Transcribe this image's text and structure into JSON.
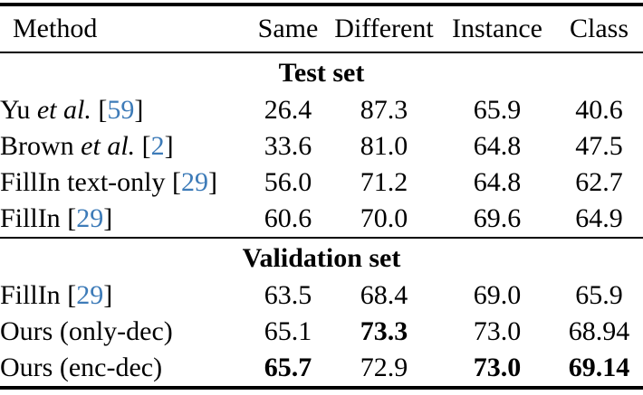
{
  "colors": {
    "citation_blue": "#3d7bb8",
    "rule_black": "#000000",
    "background": "#ffffff"
  },
  "table": {
    "headers": [
      "Method",
      "Same",
      "Different",
      "Instance",
      "Class"
    ],
    "sections": [
      {
        "title": "Test set",
        "rows": [
          {
            "method": {
              "pre": "Yu ",
              "it": "et al.",
              "post": " [",
              "cite": "59",
              "end": "]"
            },
            "values": [
              {
                "v": "26.4",
                "b": "false"
              },
              {
                "v": "87.3",
                "b": "false"
              },
              {
                "v": "65.9",
                "b": "false"
              },
              {
                "v": "40.6",
                "b": "false"
              }
            ]
          },
          {
            "method": {
              "pre": "Brown ",
              "it": "et al.",
              "post": " [",
              "cite": "2",
              "end": "]"
            },
            "values": [
              {
                "v": "33.6",
                "b": "false"
              },
              {
                "v": "81.0",
                "b": "false"
              },
              {
                "v": "64.8",
                "b": "false"
              },
              {
                "v": "47.5",
                "b": "false"
              }
            ]
          },
          {
            "method": {
              "pre": "FillIn text-only ",
              "it": "",
              "post": "[",
              "cite": "29",
              "end": "]"
            },
            "values": [
              {
                "v": "56.0",
                "b": "false"
              },
              {
                "v": "71.2",
                "b": "false"
              },
              {
                "v": "64.8",
                "b": "false"
              },
              {
                "v": "62.7",
                "b": "false"
              }
            ]
          },
          {
            "method": {
              "pre": "FillIn ",
              "it": "",
              "post": "[",
              "cite": "29",
              "end": "]"
            },
            "values": [
              {
                "v": "60.6",
                "b": "false"
              },
              {
                "v": "70.0",
                "b": "false"
              },
              {
                "v": "69.6",
                "b": "false"
              },
              {
                "v": "64.9",
                "b": "false"
              }
            ]
          }
        ]
      },
      {
        "title": "Validation set",
        "rows": [
          {
            "method": {
              "pre": "FillIn ",
              "it": "",
              "post": "[",
              "cite": "29",
              "end": "]"
            },
            "values": [
              {
                "v": "63.5",
                "b": "false"
              },
              {
                "v": "68.4",
                "b": "false"
              },
              {
                "v": "69.0",
                "b": "false"
              },
              {
                "v": "65.9",
                "b": "false"
              }
            ]
          },
          {
            "method": {
              "pre": "Ours (only-dec)",
              "it": "",
              "post": "",
              "cite": "",
              "end": ""
            },
            "values": [
              {
                "v": "65.1",
                "b": "false"
              },
              {
                "v": "73.3",
                "b": "true"
              },
              {
                "v": "73.0",
                "b": "false"
              },
              {
                "v": "68.94",
                "b": "false"
              }
            ]
          },
          {
            "method": {
              "pre": "Ours (enc-dec)",
              "it": "",
              "post": "",
              "cite": "",
              "end": ""
            },
            "values": [
              {
                "v": "65.7",
                "b": "true"
              },
              {
                "v": "72.9",
                "b": "false"
              },
              {
                "v": "73.0",
                "b": "true"
              },
              {
                "v": "69.14",
                "b": "true"
              }
            ]
          }
        ]
      }
    ]
  }
}
